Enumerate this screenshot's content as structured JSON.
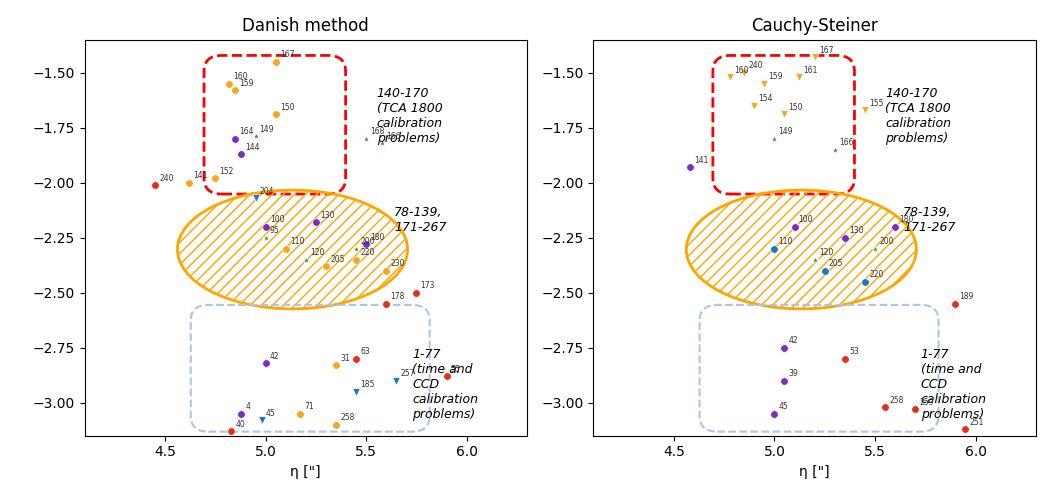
{
  "chart_data": [
    {
      "type": "scatter",
      "title": "Danish method",
      "x_label": "η [\"]",
      "xlim": [
        4.1,
        6.3
      ],
      "xticks": [
        4.5,
        5.0,
        5.5,
        6.0
      ],
      "ylim": [
        -3.15,
        -1.35
      ],
      "yticks": [
        {
          "value": -1.5,
          "label": "−1.50"
        },
        {
          "value": -1.75,
          "label": "−1.75"
        },
        {
          "value": -2.0,
          "label": "−2.00"
        },
        {
          "value": -2.25,
          "label": "−2.25"
        },
        {
          "value": -2.5,
          "label": "−2.50"
        },
        {
          "value": -2.75,
          "label": "−2.75"
        },
        {
          "value": -3.0,
          "label": "−3.00"
        }
      ],
      "annotations": [
        "140-170\n(TCA 1800\ncalibration\nproblems)",
        "78-139,\n171-267",
        "1-77\n(time and\nCCD\ncalibration\nproblems)"
      ],
      "series": [
        {
          "color": "#f5a623",
          "marker": "circle",
          "x": [
            5.05,
            4.82,
            4.85,
            5.05,
            4.62,
            4.75,
            5.1,
            5.3,
            5.45,
            5.6,
            5.35,
            5.17,
            5.35
          ],
          "y": [
            -1.45,
            -1.55,
            -1.58,
            -1.69,
            -2.0,
            -1.98,
            -2.3,
            -2.38,
            -2.35,
            -2.4,
            -2.83,
            -3.05,
            -3.1
          ],
          "labels": [
            "167",
            "160",
            "159",
            "150",
            "141",
            "152",
            "110",
            "205",
            "220",
            "230",
            "31",
            "71",
            "258"
          ]
        },
        {
          "color": "#2ca02c",
          "marker": "star",
          "x": [
            4.95,
            5.5,
            5.58,
            5.2,
            5.45,
            5.0
          ],
          "y": [
            -1.79,
            -1.8,
            -1.82,
            -2.35,
            -2.3,
            -2.25
          ],
          "labels": [
            "149",
            "168",
            "166",
            "120",
            "200",
            "95"
          ]
        },
        {
          "color": "#7b2fbe",
          "marker": "circle",
          "x": [
            4.85,
            4.88,
            5.0,
            5.25,
            5.5,
            5.0,
            4.88
          ],
          "y": [
            -1.8,
            -1.87,
            -2.2,
            -2.18,
            -2.28,
            -2.82,
            -3.05
          ],
          "labels": [
            "164",
            "144",
            "100",
            "130",
            "180",
            "42",
            "4"
          ]
        },
        {
          "color": "#e0301e",
          "marker": "circle",
          "x": [
            4.45,
            5.75,
            5.6,
            5.45,
            5.9,
            4.83
          ],
          "y": [
            -2.01,
            -2.5,
            -2.55,
            -2.8,
            -2.88,
            -3.13
          ],
          "labels": [
            "240",
            "173",
            "178",
            "63",
            "55",
            "40"
          ]
        },
        {
          "color": "#1f77b4",
          "marker": "triangle",
          "x": [
            4.95,
            5.65,
            5.45,
            4.98
          ],
          "y": [
            -2.07,
            -2.9,
            -2.95,
            -3.08
          ],
          "labels": [
            "204",
            "257",
            "185",
            "45"
          ]
        }
      ]
    },
    {
      "type": "scatter",
      "title": "Cauchy-Steiner",
      "x_label": "η [\"]",
      "xlim": [
        4.1,
        6.3
      ],
      "xticks": [
        4.5,
        5.0,
        5.5,
        6.0
      ],
      "ylim": [
        -3.15,
        -1.35
      ],
      "yticks": [
        {
          "value": -1.5,
          "label": "−1.50"
        },
        {
          "value": -1.75,
          "label": "−1.75"
        },
        {
          "value": -2.0,
          "label": "−2.00"
        },
        {
          "value": -2.25,
          "label": "−2.25"
        },
        {
          "value": -2.5,
          "label": "−2.50"
        },
        {
          "value": -2.75,
          "label": "−2.75"
        },
        {
          "value": -3.0,
          "label": "−3.00"
        }
      ],
      "annotations": [
        "140-170\n(TCA 1800\ncalibration\nproblems)",
        "78-139,\n171-267",
        "1-77\n(time and\nCCD\ncalibration\nproblems)"
      ],
      "series": [
        {
          "color": "#f5a623",
          "marker": "triangle",
          "x": [
            5.2,
            4.85,
            4.78,
            4.95,
            5.12,
            4.9,
            5.45,
            5.05
          ],
          "y": [
            -1.43,
            -1.5,
            -1.52,
            -1.55,
            -1.52,
            -1.65,
            -1.67,
            -1.69
          ],
          "labels": [
            "167",
            "240",
            "160",
            "159",
            "161",
            "154",
            "155",
            "150"
          ]
        },
        {
          "color": "#2ca02c",
          "marker": "star",
          "x": [
            5.0,
            5.3,
            5.5,
            5.2
          ],
          "y": [
            -1.8,
            -1.85,
            -2.3,
            -2.35
          ],
          "labels": [
            "149",
            "166",
            "200",
            "120"
          ]
        },
        {
          "color": "#7b2fbe",
          "marker": "circle",
          "x": [
            4.58,
            5.1,
            5.35,
            5.6,
            5.05,
            5.05,
            5.0
          ],
          "y": [
            -1.93,
            -2.2,
            -2.25,
            -2.2,
            -2.75,
            -2.9,
            -3.05
          ],
          "labels": [
            "141",
            "100",
            "130",
            "180",
            "42",
            "39",
            "45"
          ]
        },
        {
          "color": "#e0301e",
          "marker": "circle",
          "x": [
            5.9,
            5.35,
            5.55,
            5.7,
            5.95
          ],
          "y": [
            -2.55,
            -2.8,
            -3.02,
            -3.03,
            -3.12
          ],
          "labels": [
            "189",
            "53",
            "258",
            "259",
            "251"
          ]
        },
        {
          "color": "#1f77b4",
          "marker": "circle",
          "x": [
            5.0,
            5.25,
            5.45
          ],
          "y": [
            -2.3,
            -2.4,
            -2.45
          ],
          "labels": [
            "110",
            "205",
            "220"
          ]
        }
      ]
    }
  ]
}
